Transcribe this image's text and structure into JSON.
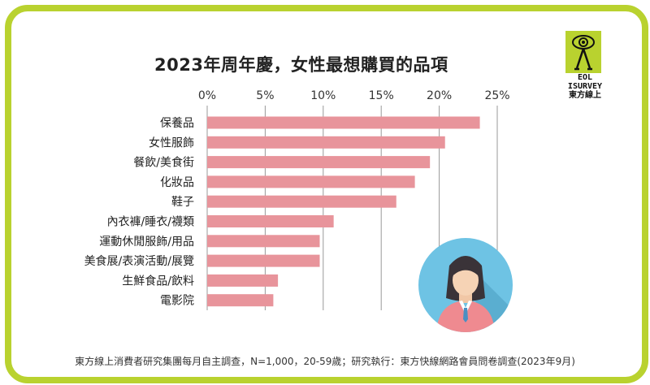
{
  "title": "2023年周年慶，女性最想購買的品項",
  "logo": {
    "line1": "EOL",
    "line2": "ISURVEY",
    "brand": "東方線上"
  },
  "footer": "東方線上消費者研究集團每月自主調查，N=1,000，20-59歲；研究執行：東方快線網路會員問卷調查(2023年9月)",
  "colors": {
    "frame": "#b9d22f",
    "bar": "#e8949b",
    "grid": "#999999",
    "avatar_bg": "#6ec3e4"
  },
  "chart_data": {
    "type": "bar",
    "orientation": "horizontal",
    "title": "2023年周年慶，女性最想購買的品項",
    "categories": [
      "保養品",
      "女性服飾",
      "餐飲/美食街",
      "化妝品",
      "鞋子",
      "內衣褲/睡衣/襪類",
      "運動休閒服飾/用品",
      "美食展/表演活動/展覽",
      "生鮮食品/飲料",
      "電影院"
    ],
    "values": [
      23.5,
      20.5,
      19.2,
      17.9,
      16.3,
      10.9,
      9.7,
      9.7,
      6.1,
      5.7
    ],
    "x_ticks": [
      "0%",
      "5%",
      "10%",
      "15%",
      "20%",
      "25%"
    ],
    "xlim": [
      0,
      25
    ],
    "xlabel": "",
    "ylabel": "",
    "grid": true,
    "tick_position": "top"
  }
}
